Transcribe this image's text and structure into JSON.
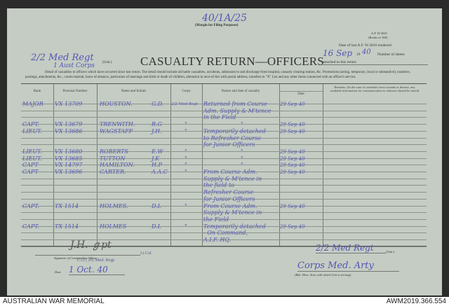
{
  "filing_ref": "40/1A/25",
  "margin_note": "(Margin for Filing Purposes)",
  "form_id": "A.F. W.3010",
  "form_books": "(Books of 100)",
  "date_last_label": "Date of last A.F. W.3010 rendered",
  "date_last_value": "16 Sep",
  "year_prefix": "19",
  "year_value": "40",
  "sheets_label": "Number of sheets",
  "attached_label": "attached to this return",
  "unit_value": "2/2 Med Regt",
  "unit_value2": "1 Aust Corps",
  "unit_label": "(Unit.)",
  "title": "CASUALTY RETURN—OFFICERS",
  "instructions": "Detail of casualties to officers which have occurred since last return. The detail should include all battle casualties, accidents, admission to and discharge from hospital, casualty clearing station, &c. Promotions (acting, temporary, local or substantive), transfers, postings, attachments, &c., courts-martial, leave of absence, particulars of marriage and birth or death of children, alteration in next-of-kin with postal address, transfers to \"X\" List and any other items connected with an officer's service.",
  "headers": {
    "rank": "Rank",
    "number": "Personal Number",
    "name": "Name and Initials",
    "corps": "Corps",
    "nature": "Nature and date of casualty",
    "date": "Date",
    "remarks": "Remarks. (In the case of casualties from wounds or disease, any available information for communication to relatives should be stated)"
  },
  "rows": [
    {
      "rank": "MAJOR",
      "number": "VX 13709",
      "name": "HOUSTON.",
      "initials": "G.D.",
      "corps": "2/2 Med Regt",
      "nature": "Returned from Course",
      "date": "29 Sep 40"
    },
    {
      "nature": "Adm. Supply & M'tence"
    },
    {
      "nature": "in the Field"
    },
    {
      "rank": "CAPT.",
      "number": "VX 13679",
      "name": "TRENWITH.",
      "initials": "R.G",
      "corps": "\"",
      "nature": "\"",
      "date": "29 Sep 40"
    },
    {
      "rank": "LIEUT.",
      "number": "VX 13686",
      "name": "WAGSTAFF",
      "initials": "J.H.",
      "corps": "\"",
      "nature": "Temporarily detached",
      "date": "29 Sep 40"
    },
    {
      "nature": "to Refresher Course"
    },
    {
      "nature": "for Junior Officers"
    },
    {
      "rank": "LIEUT.",
      "number": "VX 13680",
      "name": "ROBERTS",
      "initials": "E.W",
      "corps": "\"",
      "nature": "\"",
      "date": "29 Sep 40"
    },
    {
      "rank": "LIEUT.",
      "number": "VX 13685",
      "name": "TUTTON",
      "initials": "J.K",
      "corps": "\"",
      "nature": "\"",
      "date": "29 Sep 40"
    },
    {
      "rank": "CAPT",
      "number": "VX 14797",
      "name": "HAMILTON.",
      "initials": "H.P",
      "corps": "\"",
      "nature": "\"",
      "date": "29 Sep 40"
    },
    {
      "rank": "CAPT",
      "number": "VX 13696",
      "name": "CARTER.",
      "initials": "A.A.C",
      "corps": "\"",
      "nature": "From Course Adm.",
      "date": "29 Sep 40"
    },
    {
      "nature": "Supply & M'tence in"
    },
    {
      "nature": "the field to"
    },
    {
      "nature": "Refresher Course"
    },
    {
      "nature": "for Junior Officers"
    },
    {
      "rank": "CAPT.",
      "number": "TX 1514",
      "name": "HOLMES.",
      "initials": "D.L",
      "corps": "\"",
      "nature": "From Course Adm.",
      "date": "29 Sep 40"
    },
    {
      "nature": "Supply & M'tence in"
    },
    {
      "nature": "the Field"
    },
    {
      "rank": "CAPT.",
      "number": "TX 1514",
      "name": "HOLMES",
      "initials": "D.L",
      "corps": "\"",
      "nature": "Temporarily detached",
      "date": "29 Sep 40"
    },
    {
      "nature": "- On Command,"
    },
    {
      "nature": "A.I.F. HQ."
    }
  ],
  "signature_label": "Signature of Commanding Officer",
  "signature_rank": "Lt.Col.",
  "signature_title": "C.O., 2/2 Med. Regt.",
  "date_label": "Date",
  "date_value": "1 Oct. 40",
  "unit_footer": "2/2 Med Regt",
  "unit_footer_label": "(Unit.)",
  "formation_value": "Corps Med. Arty",
  "formation_label": "(Bde. Divn. Area with which Unit is serving).",
  "footer_left": "AUSTRALIAN WAR MEMORIAL",
  "footer_right": "AWM2019.366.554"
}
